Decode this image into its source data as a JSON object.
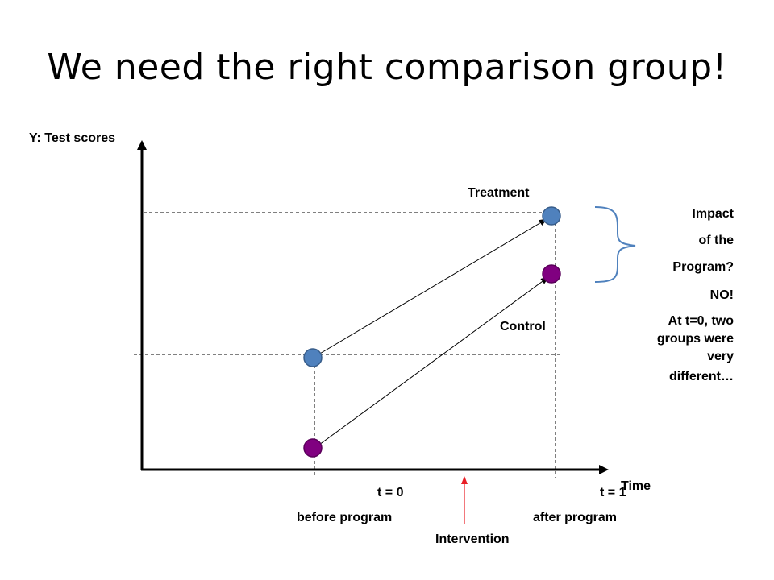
{
  "title": "We need the right comparison group!",
  "diagram": {
    "y_axis_label": "Y: Test scores",
    "x_axis_label": "Time",
    "treatment_label": "Treatment",
    "control_label": "Control",
    "t0_label": "t = 0",
    "t0_sub_label": "before program",
    "t1_label": "t = 1",
    "t1_sub_label": "after program",
    "intervention_label": "Intervention",
    "impact_lines": [
      "Impact",
      "of the",
      "Program?",
      "NO!",
      "At t=0, two",
      "groups were",
      "very",
      "different…"
    ],
    "colors": {
      "treatment": "#4f81bd",
      "control": "#800080",
      "intervention_arrow": "#e81e25",
      "axis": "#000000"
    }
  }
}
